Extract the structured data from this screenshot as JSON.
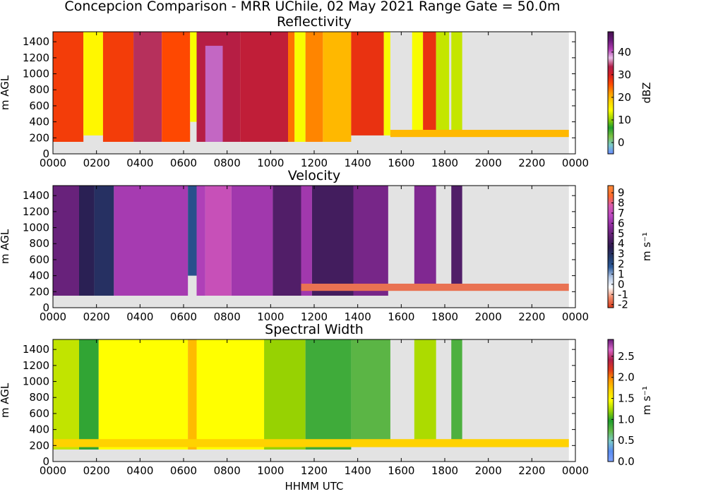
{
  "figure": {
    "title": "Concepcion Comparison - MRR UChile, 02 May 2021 Range Gate = 50.0m",
    "xlabel": "HHMM UTC",
    "x_ticks": [
      "0000",
      "0200",
      "0400",
      "0600",
      "0800",
      "1000",
      "1200",
      "1400",
      "1600",
      "1800",
      "2000",
      "2200",
      "0000"
    ],
    "y_ticks": [
      "0",
      "200",
      "400",
      "600",
      "800",
      "1000",
      "1200",
      "1400"
    ],
    "ylabel": "m AGL",
    "colors": {
      "missing": "#e3e3e3",
      "axes": "#000000"
    }
  },
  "chart_data": [
    {
      "type": "heatmap",
      "title": "Reflectivity",
      "xlabel": "HHMM UTC",
      "ylabel": "m AGL",
      "xlim_hours": [
        0,
        24
      ],
      "ylim": [
        0,
        1525
      ],
      "colorbar": {
        "label": "dBZ",
        "range": [
          -5,
          49
        ],
        "ticks": [
          "0",
          "10",
          "20",
          "30",
          "40"
        ],
        "tick_values": [
          0,
          10,
          20,
          30,
          40
        ],
        "colors": [
          "#6a8cff",
          "#7ac9c9",
          "#7bc043",
          "#1f9e2c",
          "#9bd400",
          "#ffff00",
          "#ffd400",
          "#ff9900",
          "#ff4a00",
          "#d81f1f",
          "#b01e4a",
          "#e8bee8",
          "#b03bb0",
          "#6a1a7a",
          "#44104e"
        ]
      },
      "segments": [
        {
          "start": 0.0,
          "end": 1.4,
          "top": 1525,
          "bottom": 150,
          "value": 27
        },
        {
          "start": 1.4,
          "end": 2.3,
          "top": 1525,
          "bottom": 230,
          "value": 15
        },
        {
          "start": 2.3,
          "end": 3.7,
          "top": 1525,
          "bottom": 150,
          "value": 27
        },
        {
          "start": 3.7,
          "end": 5.0,
          "top": 1525,
          "bottom": 150,
          "value": 34
        },
        {
          "start": 5.0,
          "end": 6.3,
          "top": 1525,
          "bottom": 150,
          "value": 26
        },
        {
          "start": 6.3,
          "end": 6.6,
          "top": 1525,
          "bottom": 400,
          "value": 14
        },
        {
          "start": 6.6,
          "end": 8.6,
          "top": 1525,
          "bottom": 150,
          "value": 33
        },
        {
          "start": 7.0,
          "end": 7.8,
          "top": 1350,
          "bottom": 150,
          "value": 40
        },
        {
          "start": 8.6,
          "end": 10.8,
          "top": 1525,
          "bottom": 150,
          "value": 32
        },
        {
          "start": 10.8,
          "end": 11.1,
          "top": 1525,
          "bottom": 150,
          "value": 24
        },
        {
          "start": 11.1,
          "end": 11.6,
          "top": 1525,
          "bottom": 150,
          "value": 14
        },
        {
          "start": 11.6,
          "end": 12.4,
          "top": 1525,
          "bottom": 150,
          "value": 23
        },
        {
          "start": 12.4,
          "end": 13.7,
          "top": 1525,
          "bottom": 150,
          "value": 20
        },
        {
          "start": 13.7,
          "end": 15.2,
          "top": 1525,
          "bottom": 230,
          "value": 28
        },
        {
          "start": 15.2,
          "end": 15.5,
          "top": 1525,
          "bottom": 230,
          "value": 14
        },
        {
          "start": 16.5,
          "end": 17.0,
          "top": 1525,
          "bottom": 230,
          "value": 14
        },
        {
          "start": 17.0,
          "end": 17.6,
          "top": 1525,
          "bottom": 230,
          "value": 28
        },
        {
          "start": 17.6,
          "end": 18.2,
          "top": 1525,
          "bottom": 230,
          "value": 12
        },
        {
          "start": 18.3,
          "end": 18.8,
          "top": 1525,
          "bottom": 280,
          "value": 12
        },
        {
          "start": 15.5,
          "end": 23.7,
          "top": 300,
          "bottom": 210,
          "value": 20
        }
      ]
    },
    {
      "type": "heatmap",
      "title": "Velocity",
      "xlabel": "HHMM UTC",
      "ylabel": "m AGL",
      "xlim_hours": [
        0,
        24
      ],
      "ylim": [
        0,
        1525
      ],
      "colorbar": {
        "label": "m s⁻¹",
        "range": [
          -2.3,
          9.7
        ],
        "ticks": [
          "-2",
          "-1",
          "0",
          "1",
          "2",
          "3",
          "4",
          "5",
          "6",
          "7",
          "8",
          "9"
        ],
        "tick_values": [
          -2,
          -1,
          0,
          1,
          2,
          3,
          4,
          5,
          6,
          7,
          8,
          9
        ],
        "colors": [
          "#d93a1a",
          "#f08a6a",
          "#ffffff",
          "#b3c7e6",
          "#2b5a9a",
          "#233a6a",
          "#2c1a4e",
          "#5a1f6e",
          "#8a2a9a",
          "#b846c0",
          "#d55ab0",
          "#ff6a2a",
          "#ff8c3a"
        ]
      },
      "segments": [
        {
          "start": 0.0,
          "end": 1.2,
          "top": 1525,
          "bottom": 150,
          "value": 5
        },
        {
          "start": 1.2,
          "end": 1.9,
          "top": 1525,
          "bottom": 150,
          "value": 3.5
        },
        {
          "start": 1.9,
          "end": 2.8,
          "top": 1525,
          "bottom": 150,
          "value": 3
        },
        {
          "start": 2.8,
          "end": 6.2,
          "top": 1525,
          "bottom": 150,
          "value": 6.3
        },
        {
          "start": 6.2,
          "end": 6.6,
          "top": 1525,
          "bottom": 400,
          "value": 2
        },
        {
          "start": 6.6,
          "end": 7.0,
          "top": 1525,
          "bottom": 150,
          "value": 6.5
        },
        {
          "start": 7.0,
          "end": 8.2,
          "top": 1525,
          "bottom": 150,
          "value": 7.2
        },
        {
          "start": 8.2,
          "end": 10.1,
          "top": 1525,
          "bottom": 150,
          "value": 6.2
        },
        {
          "start": 10.1,
          "end": 11.4,
          "top": 1525,
          "bottom": 150,
          "value": 4.5
        },
        {
          "start": 11.4,
          "end": 11.9,
          "top": 1525,
          "bottom": 150,
          "value": 6.2
        },
        {
          "start": 11.9,
          "end": 13.8,
          "top": 1525,
          "bottom": 150,
          "value": 4.2
        },
        {
          "start": 13.8,
          "end": 15.4,
          "top": 1525,
          "bottom": 150,
          "value": 5.3
        },
        {
          "start": 16.6,
          "end": 17.6,
          "top": 1525,
          "bottom": 230,
          "value": 5.5
        },
        {
          "start": 18.3,
          "end": 18.8,
          "top": 1525,
          "bottom": 230,
          "value": 4.5
        },
        {
          "start": 11.4,
          "end": 23.7,
          "top": 300,
          "bottom": 210,
          "value": -1.6
        }
      ]
    },
    {
      "type": "heatmap",
      "title": "Spectral Width",
      "xlabel": "HHMM UTC",
      "ylabel": "m AGL",
      "xlim_hours": [
        0,
        24
      ],
      "ylim": [
        0,
        1525
      ],
      "colorbar": {
        "label": "m s⁻¹",
        "range": [
          0.0,
          2.9
        ],
        "ticks": [
          "0.0",
          "0.5",
          "1.0",
          "1.5",
          "2.0",
          "2.5"
        ],
        "tick_values": [
          0.0,
          0.5,
          1.0,
          1.5,
          2.0,
          2.5
        ],
        "colors": [
          "#7fa3ff",
          "#5a8cf0",
          "#7ac9c9",
          "#62b848",
          "#1f9e2c",
          "#9bd400",
          "#ffff00",
          "#ffd400",
          "#ff9900",
          "#e03a1a",
          "#b01e4a",
          "#d866c8",
          "#6a1a7a"
        ]
      },
      "segments": [
        {
          "start": 0.0,
          "end": 1.2,
          "top": 1525,
          "bottom": 150,
          "value": 1.3
        },
        {
          "start": 1.2,
          "end": 2.1,
          "top": 1525,
          "bottom": 150,
          "value": 0.9
        },
        {
          "start": 2.1,
          "end": 6.2,
          "top": 1525,
          "bottom": 150,
          "value": 1.45
        },
        {
          "start": 6.2,
          "end": 6.6,
          "top": 1525,
          "bottom": 150,
          "value": 1.8
        },
        {
          "start": 6.6,
          "end": 9.7,
          "top": 1525,
          "bottom": 150,
          "value": 1.45
        },
        {
          "start": 9.7,
          "end": 11.6,
          "top": 1525,
          "bottom": 150,
          "value": 1.2
        },
        {
          "start": 11.6,
          "end": 13.7,
          "top": 1525,
          "bottom": 150,
          "value": 0.85
        },
        {
          "start": 13.7,
          "end": 15.5,
          "top": 1525,
          "bottom": 230,
          "value": 0.75
        },
        {
          "start": 16.6,
          "end": 17.6,
          "top": 1525,
          "bottom": 230,
          "value": 1.25
        },
        {
          "start": 18.3,
          "end": 18.8,
          "top": 1525,
          "bottom": 230,
          "value": 0.8
        },
        {
          "start": 0.0,
          "end": 23.7,
          "top": 280,
          "bottom": 180,
          "value": 1.7
        }
      ]
    }
  ]
}
